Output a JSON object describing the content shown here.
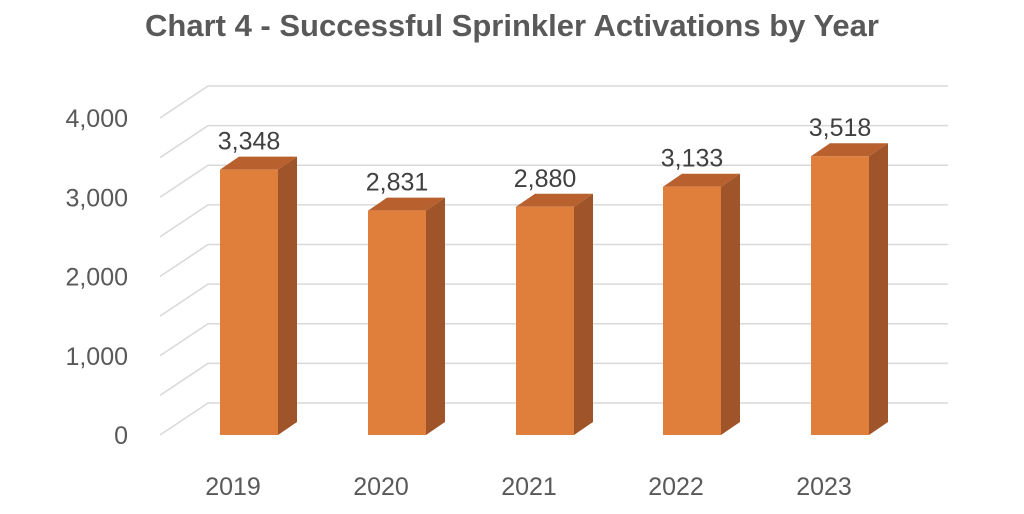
{
  "chart_data": {
    "type": "bar",
    "title": "Chart 4 - Successful Sprinkler Activations by Year",
    "categories": [
      "2019",
      "2020",
      "2021",
      "2022",
      "2023"
    ],
    "series": [
      {
        "values": [
          3348,
          2831,
          2880,
          3133,
          3518
        ]
      }
    ],
    "data_labels": [
      "3,348",
      "2,831",
      "2,880",
      "3,133",
      "3,518"
    ],
    "y_ticks": [
      "0",
      "1,000",
      "2,000",
      "3,000",
      "4,000"
    ],
    "ylim": [
      0,
      4000
    ],
    "grid": true,
    "legend": "none",
    "style": "3d-column",
    "colors": {
      "bar_front": "#E07E3C",
      "bar_side": "#A0542A",
      "bar_top": "#B8612E",
      "grid": "#D9D9D9",
      "text": "#595959"
    }
  }
}
